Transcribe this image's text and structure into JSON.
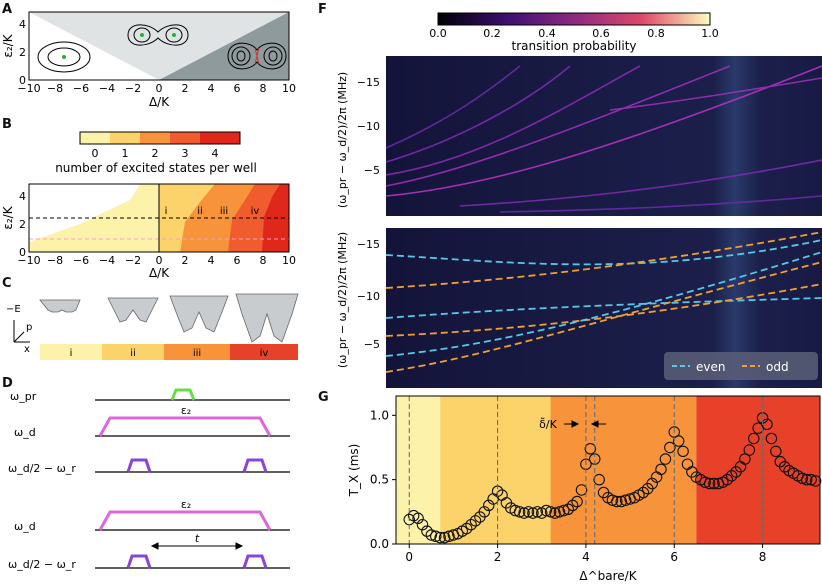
{
  "panels": {
    "A": {
      "label": "A",
      "ylabel": "ε₂/K",
      "xlabel": "Δ/K",
      "xticks": [
        "−10",
        "−8",
        "−6",
        "−4",
        "−2",
        "0",
        "2",
        "4",
        "6",
        "8",
        "10"
      ],
      "yticks": [
        "0",
        "2",
        "4"
      ]
    },
    "B": {
      "label": "B",
      "colorbar_ticks": [
        "0",
        "1",
        "2",
        "3",
        "4"
      ],
      "colorbar_title": "number of excited states per well",
      "ylabel": "ε₂/K",
      "xlabel": "Δ/K",
      "xticks": [
        "−10",
        "−8",
        "−6",
        "−4",
        "−2",
        "0",
        "2",
        "4",
        "6",
        "8",
        "10"
      ],
      "yticks": [
        "0",
        "2",
        "4"
      ],
      "region_labels": [
        "i",
        "ii",
        "iii",
        "iv"
      ]
    },
    "C": {
      "label": "C",
      "axis_e": "−E",
      "axis_p": "p",
      "axis_x": "x",
      "regions": [
        "i",
        "ii",
        "iii",
        "iv"
      ],
      "region_colors": [
        "#fdf2a9",
        "#fbd36a",
        "#f7933a",
        "#e8412a"
      ]
    },
    "D": {
      "label": "D",
      "row_labels": [
        "ω_pr",
        "ω_d",
        "ω_d/2 − ω_r",
        "ω_d",
        "ω_d/2 − ω_r"
      ],
      "pulse_label": "ε₂",
      "time_label": "t",
      "colors": {
        "probe": "#66dd44",
        "drive": "#dd66dd",
        "readout": "#8844dd"
      }
    },
    "F": {
      "label": "F",
      "colorbar_ticks": [
        "0.0",
        "0.2",
        "0.4",
        "0.6",
        "0.8",
        "1.0"
      ],
      "colorbar_title": "transition probability",
      "ylabel": "(ω_pr − ω_d/2)/2π (MHz)",
      "yticks": [
        "−15",
        "−10",
        "−5"
      ],
      "legend": [
        "even",
        "odd"
      ],
      "legend_colors": [
        "#55c8e8",
        "#f0a030"
      ]
    },
    "G": {
      "label": "G",
      "ylabel": "T_X (ms)",
      "xlabel": "Δ^bare/K",
      "xticks": [
        "0",
        "2",
        "4",
        "6",
        "8"
      ],
      "yticks": [
        "0.0",
        "0.5",
        "1.0"
      ],
      "annotation": "δ̃/K"
    }
  },
  "chart_data": {
    "type": "scatter",
    "title": "",
    "xlabel": "Δ^bare/K",
    "ylabel": "T_X (ms)",
    "xlim": [
      -0.3,
      9.3
    ],
    "ylim": [
      0.0,
      1.15
    ],
    "series": [
      {
        "name": "T_X",
        "x": [
          0.0,
          0.1,
          0.2,
          0.3,
          0.4,
          0.5,
          0.6,
          0.7,
          0.8,
          0.9,
          1.0,
          1.1,
          1.2,
          1.3,
          1.4,
          1.5,
          1.6,
          1.7,
          1.8,
          1.9,
          2.0,
          2.1,
          2.2,
          2.3,
          2.4,
          2.5,
          2.6,
          2.7,
          2.8,
          2.9,
          3.0,
          3.1,
          3.2,
          3.3,
          3.4,
          3.5,
          3.6,
          3.7,
          3.8,
          3.9,
          4.0,
          4.1,
          4.2,
          4.3,
          4.4,
          4.5,
          4.6,
          4.7,
          4.8,
          4.9,
          5.0,
          5.1,
          5.2,
          5.3,
          5.4,
          5.5,
          5.6,
          5.7,
          5.8,
          5.9,
          6.0,
          6.1,
          6.2,
          6.3,
          6.4,
          6.5,
          6.6,
          6.7,
          6.8,
          6.9,
          7.0,
          7.1,
          7.2,
          7.3,
          7.4,
          7.5,
          7.6,
          7.7,
          7.8,
          7.9,
          8.0,
          8.1,
          8.2,
          8.3,
          8.4,
          8.5,
          8.6,
          8.7,
          8.8,
          8.9,
          9.0,
          9.1,
          9.2
        ],
        "y": [
          0.19,
          0.22,
          0.2,
          0.15,
          0.1,
          0.07,
          0.06,
          0.05,
          0.05,
          0.06,
          0.07,
          0.08,
          0.1,
          0.12,
          0.15,
          0.18,
          0.21,
          0.25,
          0.3,
          0.35,
          0.41,
          0.38,
          0.32,
          0.28,
          0.26,
          0.25,
          0.24,
          0.25,
          0.24,
          0.25,
          0.24,
          0.26,
          0.25,
          0.24,
          0.25,
          0.26,
          0.27,
          0.3,
          0.33,
          0.42,
          0.62,
          0.74,
          0.66,
          0.5,
          0.4,
          0.36,
          0.34,
          0.33,
          0.33,
          0.34,
          0.35,
          0.36,
          0.38,
          0.4,
          0.43,
          0.47,
          0.52,
          0.58,
          0.66,
          0.75,
          0.87,
          0.8,
          0.72,
          0.62,
          0.56,
          0.52,
          0.5,
          0.48,
          0.47,
          0.47,
          0.47,
          0.48,
          0.5,
          0.53,
          0.56,
          0.6,
          0.66,
          0.73,
          0.82,
          0.9,
          0.98,
          0.93,
          0.82,
          0.72,
          0.64,
          0.6,
          0.57,
          0.55,
          0.53,
          0.51,
          0.5,
          0.5,
          0.49
        ]
      }
    ],
    "background_regions": [
      {
        "from": -0.3,
        "to": 0.7,
        "color": "#fdf2a9"
      },
      {
        "from": 0.7,
        "to": 3.2,
        "color": "#fbd36a"
      },
      {
        "from": 3.2,
        "to": 6.5,
        "color": "#f7933a"
      },
      {
        "from": 6.5,
        "to": 9.3,
        "color": "#e8412a"
      }
    ]
  }
}
